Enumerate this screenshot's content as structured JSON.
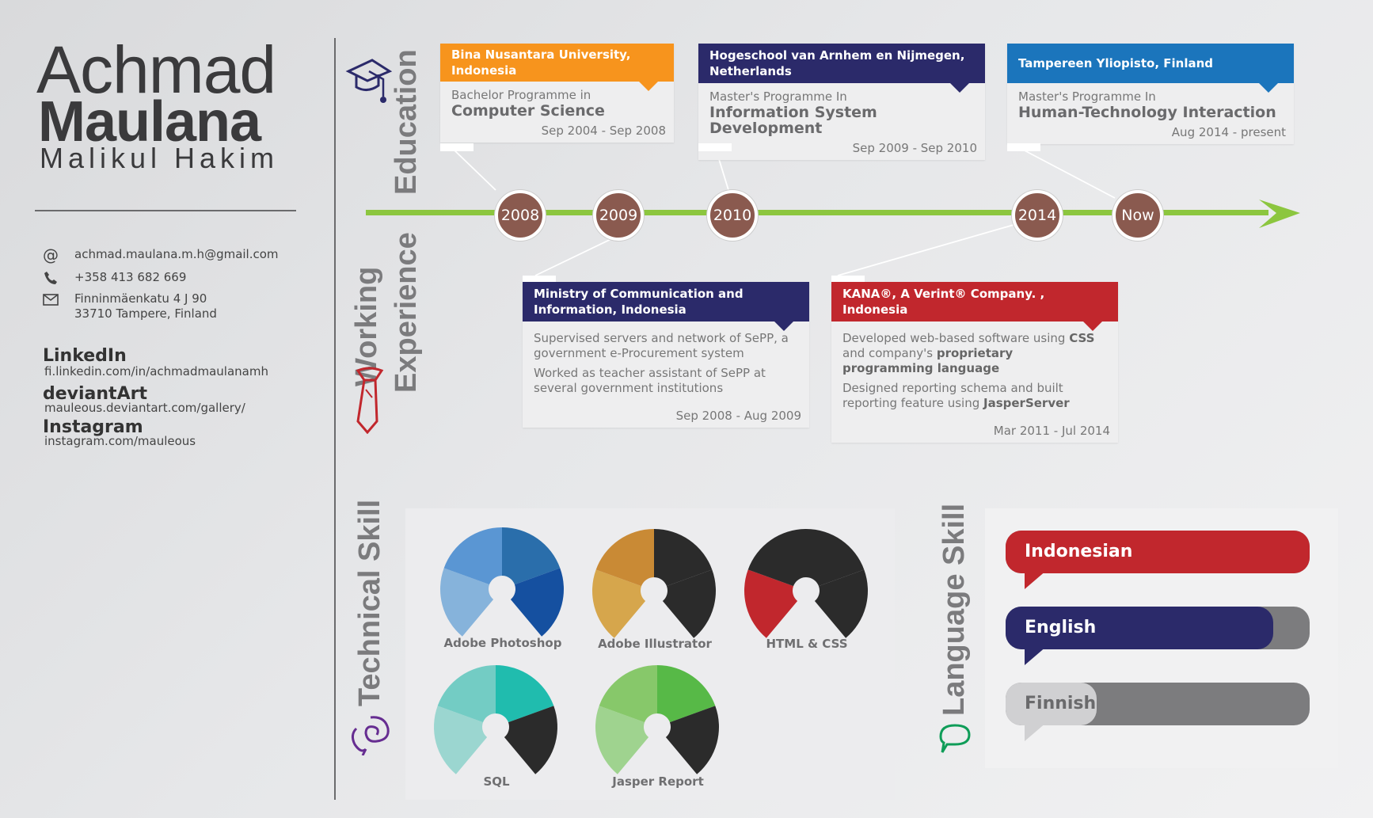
{
  "person": {
    "first_name": "Achmad",
    "last_name": "Maulana",
    "middle_name": "Malikul Hakim"
  },
  "contact": {
    "email": "achmad.maulana.m.h@gmail.com",
    "phone": "+358 413 682 669",
    "address_line1": "Finninmäenkatu 4 J 90",
    "address_line2": "33710 Tampere, Finland",
    "email_icon": "at-icon",
    "phone_icon": "phone-icon",
    "address_icon": "envelope-icon"
  },
  "social": [
    {
      "label": "LinkedIn",
      "url": "fi.linkedin.com/in/achmadmaulanamh"
    },
    {
      "label": "deviantArt",
      "url": "mauleous.deviantart.com/gallery/"
    },
    {
      "label": "Instagram",
      "url": "instagram.com/mauleous"
    }
  ],
  "sections": {
    "education": "Education",
    "working_line1": "Working",
    "working_line2": "Experience",
    "technical": "Technical Skill",
    "language": "Language Skill"
  },
  "timeline": {
    "years": [
      "2008",
      "2009",
      "2010",
      "2014",
      "Now"
    ],
    "line_color": "#8cc63f",
    "node_color": "#8a5a4f"
  },
  "education": [
    {
      "school": "Bina Nusantara University, Indonesia",
      "program": "Bachelor Programme in",
      "field": "Computer Science",
      "dates": "Sep 2004 - Sep 2008",
      "color": "#f7941d"
    },
    {
      "school": "Hogeschool van Arnhem en Nijmegen, Netherlands",
      "program": "Master's Programme In",
      "field": "Information System Development",
      "dates": "Sep 2009 - Sep 2010",
      "color": "#2b2a6a"
    },
    {
      "school": "Tampereen Yliopisto, Finland",
      "program": "Master's Programme In",
      "field": "Human-Technology Interaction",
      "dates": "Aug 2014 - present",
      "color": "#1b75bc"
    }
  ],
  "work": [
    {
      "employer": "Ministry of Communication and Information, Indonesia",
      "desc1": "Supervised servers and network of SePP, a government e-Procurement system",
      "desc2": "Worked as teacher assistant of SePP at several government institutions",
      "dates": "Sep 2008 - Aug 2009",
      "color": "#2b2a6a"
    },
    {
      "employer": "KANA®, A Verint® Company. , Indonesia",
      "desc1_a": "Developed web-based software using ",
      "desc1_b": "CSS",
      "desc1_c": " and company's ",
      "desc1_d": "proprietary programming language",
      "desc2_a": "Designed reporting schema and built reporting feature using ",
      "desc2_b": "JasperServer",
      "dates": "Mar 2011 - Jul 2014",
      "color": "#c1272d"
    }
  ],
  "technical_skills": [
    {
      "name": "Adobe Photoshop",
      "level": 1.0,
      "colors": [
        "#2a6eab",
        "#1550a0",
        "#86b3db",
        "#5a96d3"
      ]
    },
    {
      "name": "Adobe Illustrator",
      "level": 0.5,
      "colors": [
        "#2b2b2b",
        "#2b2b2b",
        "#d6a64c",
        "#c98a35"
      ]
    },
    {
      "name": "HTML & CSS",
      "level": 0.25,
      "colors": [
        "#2b2b2b",
        "#2b2b2b",
        "#c1272d",
        "#2b2b2b"
      ]
    },
    {
      "name": "SQL",
      "level": 0.5,
      "colors": [
        "#20bcae",
        "#2b2b2b",
        "#9bd6d0",
        "#73ccc4"
      ]
    },
    {
      "name": "Jasper Report",
      "level": 0.5,
      "colors": [
        "#57b947",
        "#2b2b2b",
        "#9fd38f",
        "#87c86a"
      ]
    }
  ],
  "language_skills": [
    {
      "name": "Indonesian",
      "level": 1.0,
      "color": "#c1272d"
    },
    {
      "name": "English",
      "level": 0.88,
      "color": "#2b2a6a"
    },
    {
      "name": "Finnish",
      "level": 0.3,
      "color": "#d0d0d2"
    }
  ]
}
